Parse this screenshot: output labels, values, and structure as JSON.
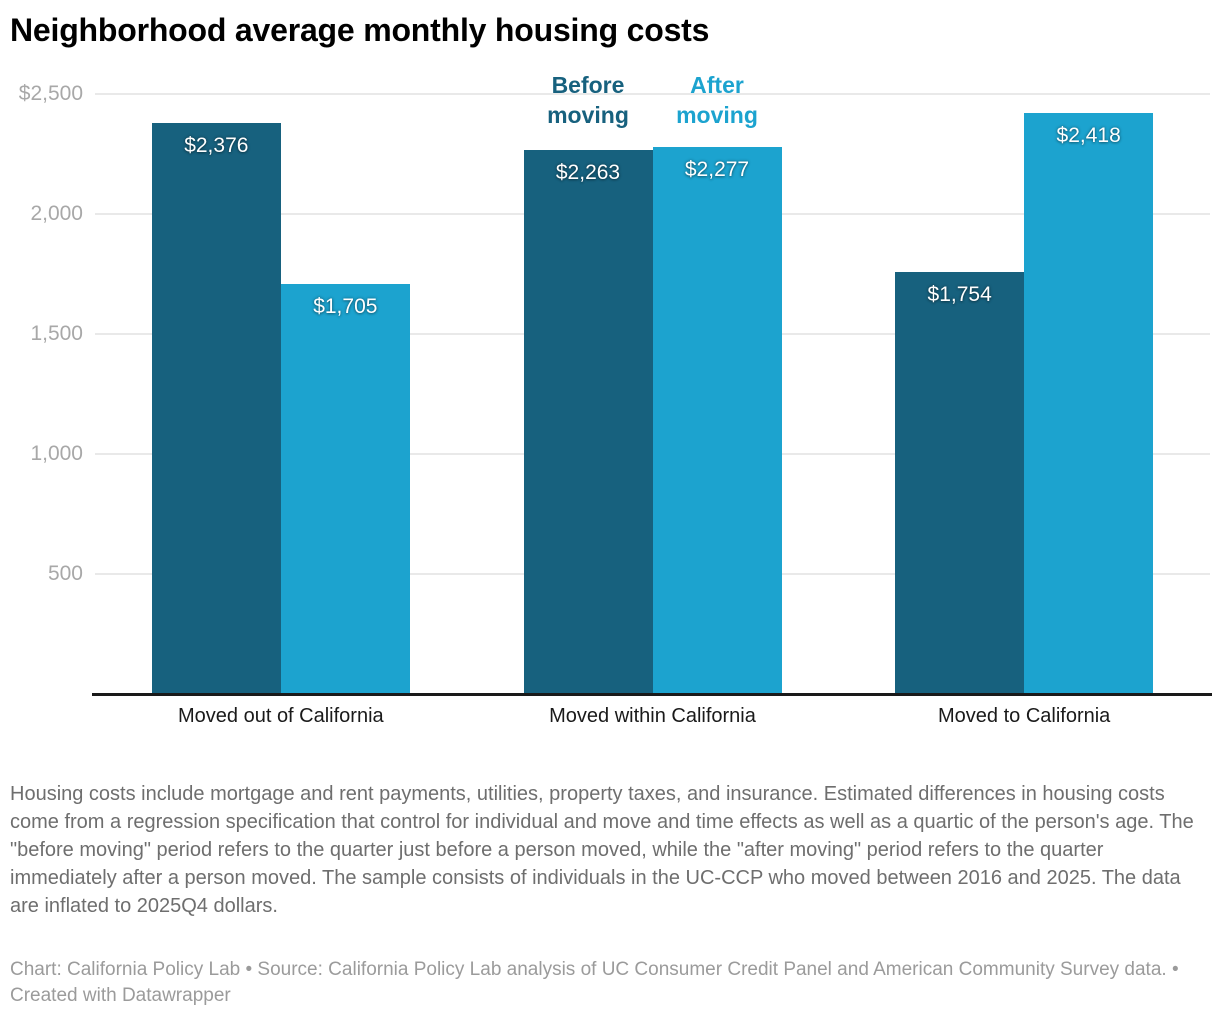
{
  "title": "Neighborhood average monthly housing costs",
  "legend": {
    "before_label": "Before moving",
    "after_label": "After moving"
  },
  "chart_data": {
    "type": "bar",
    "title": "Neighborhood average monthly housing costs",
    "categories": [
      "Moved out of California",
      "Moved within California",
      "Moved to California"
    ],
    "series": [
      {
        "name": "Before moving",
        "color": "#17617E",
        "values": [
          2376,
          2263,
          1754
        ],
        "labels": [
          "$2,376",
          "$2,263",
          "$1,754"
        ]
      },
      {
        "name": "After moving",
        "color": "#1CA3CF",
        "values": [
          1705,
          2277,
          2418
        ],
        "labels": [
          "$1,705",
          "$2,277",
          "$2,418"
        ]
      }
    ],
    "y_ticks": [
      {
        "value": 2500,
        "label": "$2,500"
      },
      {
        "value": 2000,
        "label": "2,000"
      },
      {
        "value": 1500,
        "label": "1,500"
      },
      {
        "value": 1000,
        "label": "1,000"
      },
      {
        "value": 500,
        "label": "500"
      }
    ],
    "ylim": [
      0,
      2500
    ],
    "grid": true,
    "legend_position": "top, above middle category bars",
    "xlabel": "",
    "ylabel": ""
  },
  "colors": {
    "before_bar": "#17617E",
    "after_bar": "#1CA3CF",
    "gridline": "#e9e9e9",
    "axis_line": "#1a1a1a",
    "tick_label": "#a8a8a8",
    "value_label": "#ffffff",
    "category_label": "#1a1a1a",
    "notes_text": "#6e6e6e",
    "attribution_text": "#9b9b9b"
  },
  "notes": "Housing costs include mortgage and rent payments, utilities, property taxes, and insurance. Estimated differences in housing costs come from a regression specification that control for individual and move and time effects as well as a quartic of the person's age. The \"before moving\" period refers to the quarter just before a person moved, while the \"after moving\" period refers to the quarter immediately after a person moved. The sample consists of individuals in the UC-CCP who moved between 2016 and 2025. The data are inflated to 2025Q4 dollars.",
  "attribution": "Chart: California Policy Lab • Source: California Policy Lab analysis of UC Consumer Credit Panel and American Community Survey data. • Created with Datawrapper"
}
